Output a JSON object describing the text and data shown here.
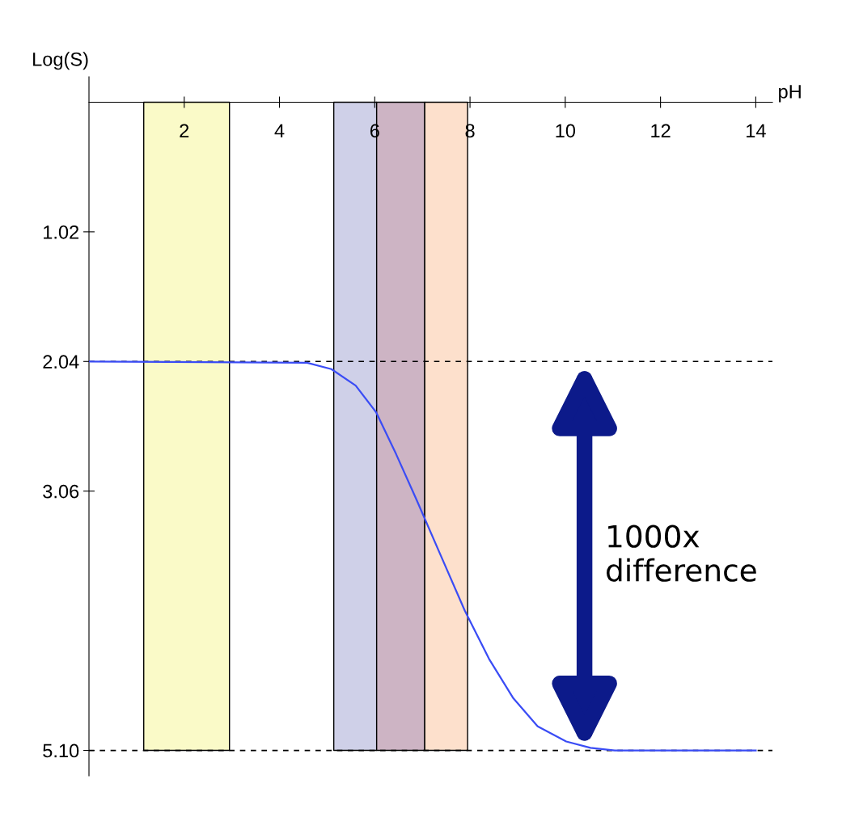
{
  "chart_data": {
    "type": "line",
    "xlabel": "pH",
    "ylabel": "Log(S)",
    "x": [
      0,
      4.58,
      5.09,
      5.6,
      6.03,
      6.45,
      6.88,
      7.39,
      7.89,
      8.4,
      8.91,
      9.42,
      10.02,
      10.53,
      11.04,
      14.0
    ],
    "series": [
      {
        "color": "#3a4cf5",
        "values": [
          2.04,
          2.05,
          2.1,
          2.23,
          2.44,
          2.77,
          3.13,
          3.57,
          4.0,
          4.38,
          4.69,
          4.91,
          5.03,
          5.08,
          5.1,
          5.1
        ]
      }
    ],
    "xlim": [
      0,
      14.35
    ],
    "ylim": [
      5.3,
      -0.2
    ],
    "xticks": [
      2,
      4,
      6,
      8,
      10,
      12,
      14
    ],
    "yticks": [
      {
        "value": 1.02,
        "label": "1.02"
      },
      {
        "value": 2.04,
        "label": "2.04"
      },
      {
        "value": 3.06,
        "label": "3.06"
      },
      {
        "value": 5.1,
        "label": "5.10"
      }
    ],
    "bands": [
      {
        "axis": "x",
        "from": 1.15,
        "to": 2.95,
        "color": "#fafac8"
      },
      {
        "axis": "x",
        "from": 5.14,
        "to": 6.04,
        "color": "#cfd0e8"
      },
      {
        "axis": "x",
        "from": 6.04,
        "to": 7.05,
        "color": "#cdb4c4"
      },
      {
        "axis": "x",
        "from": 7.05,
        "to": 7.95,
        "color": "#fde0cc"
      }
    ],
    "ref_lines": [
      {
        "axis": "y",
        "value": 2.04,
        "line_style": "dashed",
        "color": "#000000"
      },
      {
        "axis": "y",
        "value": 5.1,
        "line_style": "dashed",
        "color": "#000000"
      }
    ],
    "annotations": [
      "1000x\ndifference"
    ],
    "grid": false,
    "legend": false,
    "marker": "none",
    "line_style": "solid"
  }
}
